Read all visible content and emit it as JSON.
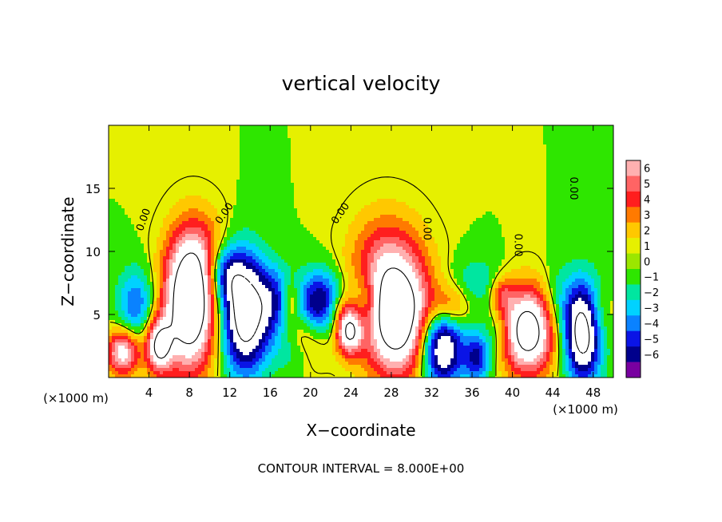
{
  "chart_data": {
    "type": "heatmap",
    "title": "vertical velocity",
    "xlabel": "X−coordinate",
    "ylabel": "Z−coordinate",
    "x_unit_left": "(×1000 m)",
    "x_unit_right": "(×1000 m)",
    "footer": "CONTOUR INTERVAL = 8.000E+00",
    "xlim": [
      0,
      50
    ],
    "ylim": [
      0,
      20
    ],
    "x_ticks": [
      "4",
      "8",
      "12",
      "16",
      "20",
      "24",
      "28",
      "32",
      "36",
      "40",
      "44",
      "48"
    ],
    "x_tick_values": [
      4,
      8,
      12,
      16,
      20,
      24,
      28,
      32,
      36,
      40,
      44,
      48
    ],
    "y_ticks": [
      "5",
      "10",
      "15"
    ],
    "y_tick_values": [
      5,
      10,
      15
    ],
    "colorbar": {
      "labels": [
        "6",
        "5",
        "4",
        "3",
        "2",
        "1",
        "0",
        "−1",
        "−2",
        "−3",
        "−4",
        "−5",
        "−6"
      ],
      "values": [
        6,
        5,
        4,
        3,
        2,
        1,
        0,
        -1,
        -2,
        -3,
        -4,
        -5,
        -6
      ],
      "colors": [
        "#ffb0b0",
        "#ff6464",
        "#ff1e1e",
        "#ff7a00",
        "#ffc800",
        "#e6f000",
        "#9be600",
        "#2ee600",
        "#00e6a0",
        "#00d2ff",
        "#0a82ff",
        "#0a14e6",
        "#00008c",
        "#7800a0"
      ]
    },
    "contour_labels": [
      "0.00",
      "0.00",
      "0.00",
      "0.00",
      "0.00",
      "0.00"
    ],
    "cells": [
      {
        "x": 1.4,
        "z": 2.0,
        "w": 7,
        "sx": 1.2,
        "sz": 1.3
      },
      {
        "x": 5.0,
        "z": 2.5,
        "w": 8,
        "sx": 0.9,
        "sz": 1.5
      },
      {
        "x": 8.0,
        "z": 5.6,
        "w": 11,
        "sx": 1.8,
        "sz": 3.6
      },
      {
        "x": 9.0,
        "z": 9.5,
        "w": 3,
        "sx": 2.0,
        "sz": 2.6
      },
      {
        "x": 19.8,
        "z": 3.0,
        "w": 3,
        "sx": 1.6,
        "sz": 1.6
      },
      {
        "x": 18.0,
        "z": 6.0,
        "w": 3,
        "sx": 0.6,
        "sz": 1.2
      },
      {
        "x": 22.5,
        "z": 5.5,
        "w": 2,
        "sx": 1.0,
        "sz": 1.0
      },
      {
        "x": 23.8,
        "z": 3.7,
        "w": 8,
        "sx": 0.9,
        "sz": 1.3
      },
      {
        "x": 28.6,
        "z": 4.5,
        "w": 10,
        "sx": 2.4,
        "sz": 3.2
      },
      {
        "x": 27.5,
        "z": 9.0,
        "w": 4,
        "sx": 2.6,
        "sz": 3.0
      },
      {
        "x": 33.8,
        "z": 5.6,
        "w": 4,
        "sx": 1.4,
        "sz": 1.3
      },
      {
        "x": 39.0,
        "z": 6.6,
        "w": 3,
        "sx": 0.8,
        "sz": 1.0
      },
      {
        "x": 41.5,
        "z": 3.7,
        "w": 10,
        "sx": 1.9,
        "sz": 2.4
      },
      {
        "x": 48.5,
        "z": 4.8,
        "w": 2,
        "sx": 1.0,
        "sz": 1.6
      },
      {
        "x": 2.7,
        "z": 5.8,
        "w": -4,
        "sx": 1.3,
        "sz": 2.0
      },
      {
        "x": 13.5,
        "z": 5.0,
        "w": -10,
        "sx": 1.6,
        "sz": 3.2
      },
      {
        "x": 11.5,
        "z": 8.2,
        "w": -5,
        "sx": 1.3,
        "sz": 1.6
      },
      {
        "x": 16.5,
        "z": 6.0,
        "w": -4,
        "sx": 1.3,
        "sz": 2.0
      },
      {
        "x": 21.0,
        "z": 5.8,
        "w": -7,
        "sx": 1.5,
        "sz": 1.8
      },
      {
        "x": 18.5,
        "z": 2.0,
        "w": -2,
        "sx": 1.6,
        "sz": 1.2
      },
      {
        "x": 33.0,
        "z": 2.5,
        "w": -9,
        "sx": 1.5,
        "sz": 2.3
      },
      {
        "x": 36.5,
        "z": 1.5,
        "w": -5,
        "sx": 0.9,
        "sz": 1.4
      },
      {
        "x": 36.5,
        "z": 7.5,
        "w": -2,
        "sx": 1.8,
        "sz": 1.5
      },
      {
        "x": 38.5,
        "z": 3.5,
        "w": -2,
        "sx": 1.2,
        "sz": 1.5
      },
      {
        "x": 47.0,
        "z": 3.6,
        "w": -10,
        "sx": 1.3,
        "sz": 2.7
      },
      {
        "x": 44.5,
        "z": 6.0,
        "w": -2,
        "sx": 1.2,
        "sz": 2.0
      },
      {
        "x": 25.5,
        "z": 6.0,
        "w": -3,
        "sx": 1.0,
        "sz": 1.8
      }
    ]
  }
}
